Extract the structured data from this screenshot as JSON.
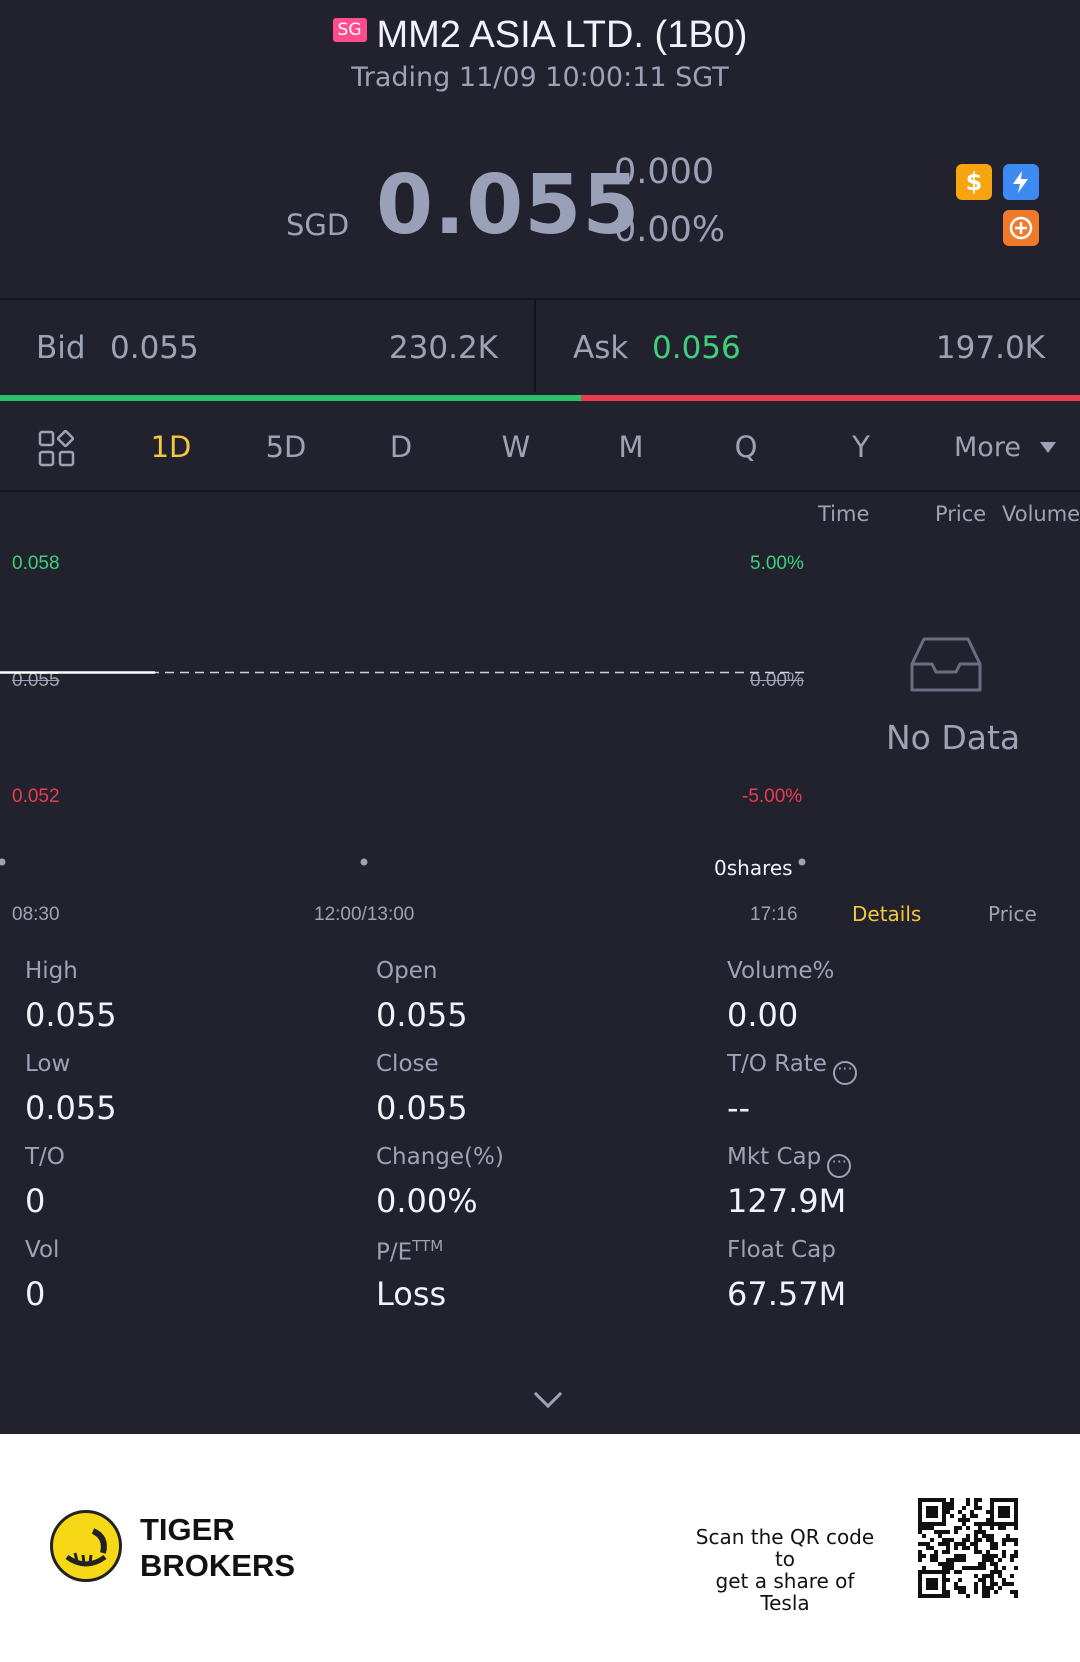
{
  "header": {
    "market_badge": "SG",
    "stock_title": "MM2 ASIA LTD. (1B0)",
    "status_line": "Trading 11/09 10:00:11 SGT"
  },
  "quote": {
    "currency": "SGD",
    "price": "0.055",
    "change": "0.000",
    "change_pct": "0.00%",
    "icons": [
      "dollar-icon",
      "flash-icon",
      "hot-icon"
    ]
  },
  "bid_ask": {
    "bid_label": "Bid",
    "bid_price": "0.055",
    "bid_volume": "230.2K",
    "ask_label": "Ask",
    "ask_price": "0.056",
    "ask_volume": "197.0K",
    "bid_ratio": 0.538
  },
  "periods": {
    "tabs": [
      "1D",
      "5D",
      "D",
      "W",
      "M",
      "Q",
      "Y"
    ],
    "active": "1D",
    "more_label": "More"
  },
  "chart": {
    "y_left": [
      "0.058",
      "0.055",
      "0.052"
    ],
    "y_right": [
      "5.00%",
      "0.00%",
      "-5.00%"
    ],
    "x_labels": [
      "08:30",
      "12:00/13:00",
      "17:16"
    ],
    "volume_label": "0shares",
    "columns": [
      "Time",
      "Price",
      "Volume"
    ],
    "no_data": "No Data",
    "side_tabs": [
      "Details",
      "Price"
    ],
    "side_tab_active": "Details"
  },
  "chart_data": {
    "type": "line",
    "x": [
      "08:30"
    ],
    "y": [
      0.055
    ],
    "prev_close": 0.055,
    "ylim": [
      0.052,
      0.058
    ],
    "y_ticks_left": [
      "0.058",
      "0.055",
      "0.052"
    ],
    "y_ticks_right": [
      "5.00%",
      "0.00%",
      "-5.00%"
    ],
    "x_ticks": [
      "08:30",
      "12:00/13:00",
      "17:16"
    ]
  },
  "stats": {
    "high_label": "High",
    "high": "0.055",
    "open_label": "Open",
    "open": "0.055",
    "volpct_label": "Volume%",
    "volpct": "0.00",
    "low_label": "Low",
    "low": "0.055",
    "close_label": "Close",
    "close": "0.055",
    "turnover_rate_label": "T/O Rate",
    "turnover_rate": "--",
    "turnover_label": "T/O",
    "turnover": "0",
    "changepct_label": "Change(%)",
    "changepct": "0.00%",
    "mktcap_label": "Mkt Cap",
    "mktcap": "127.9M",
    "vol_label": "Vol",
    "vol": "0",
    "pe_label": "P/E",
    "pe_sup": "TTM",
    "pe": "Loss",
    "floatcap_label": "Float Cap",
    "floatcap": "67.57M"
  },
  "footer": {
    "brand_line1": "TIGER",
    "brand_line2": "BROKERS",
    "scan_line1": "Scan the QR code to",
    "scan_line2": "get a share of Tesla"
  },
  "colors": {
    "background": "#21222e",
    "up": "#3ecf7a",
    "down": "#e83d4f",
    "accent": "#f3c83a"
  }
}
